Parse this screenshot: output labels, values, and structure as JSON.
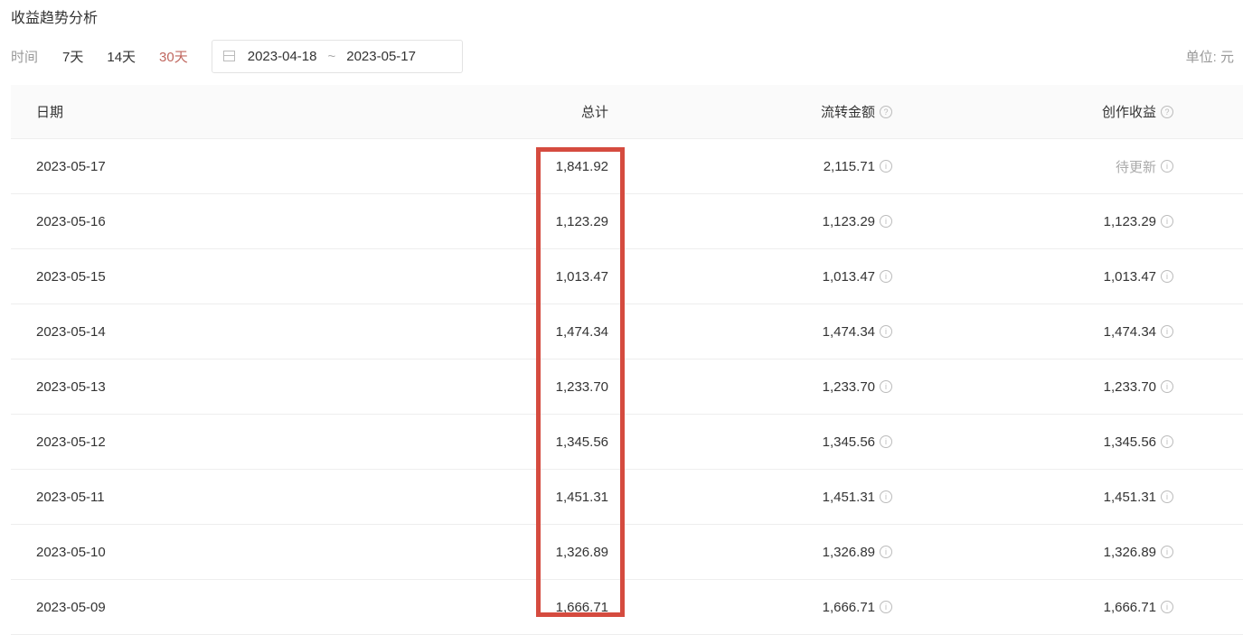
{
  "title": "收益趋势分析",
  "filter": {
    "label": "时间",
    "options": [
      "7天",
      "14天",
      "30天"
    ],
    "active": "30天",
    "start": "2023-04-18",
    "end": "2023-05-17",
    "separator": "~"
  },
  "unit": "单位: 元",
  "highlight_color": "#d54b3f",
  "table": {
    "headers": [
      "日期",
      "总计",
      "流转金额",
      "创作收益"
    ],
    "rows": [
      [
        "2023-05-17",
        "1,841.92",
        "2,115.71",
        "待更新"
      ],
      [
        "2023-05-16",
        "1,123.29",
        "1,123.29",
        "1,123.29"
      ],
      [
        "2023-05-15",
        "1,013.47",
        "1,013.47",
        "1,013.47"
      ],
      [
        "2023-05-14",
        "1,474.34",
        "1,474.34",
        "1,474.34"
      ],
      [
        "2023-05-13",
        "1,233.70",
        "1,233.70",
        "1,233.70"
      ],
      [
        "2023-05-12",
        "1,345.56",
        "1,345.56",
        "1,345.56"
      ],
      [
        "2023-05-11",
        "1,451.31",
        "1,451.31",
        "1,451.31"
      ],
      [
        "2023-05-10",
        "1,326.89",
        "1,326.89",
        "1,326.89"
      ],
      [
        "2023-05-09",
        "1,666.71",
        "1,666.71",
        "1,666.71"
      ]
    ]
  }
}
